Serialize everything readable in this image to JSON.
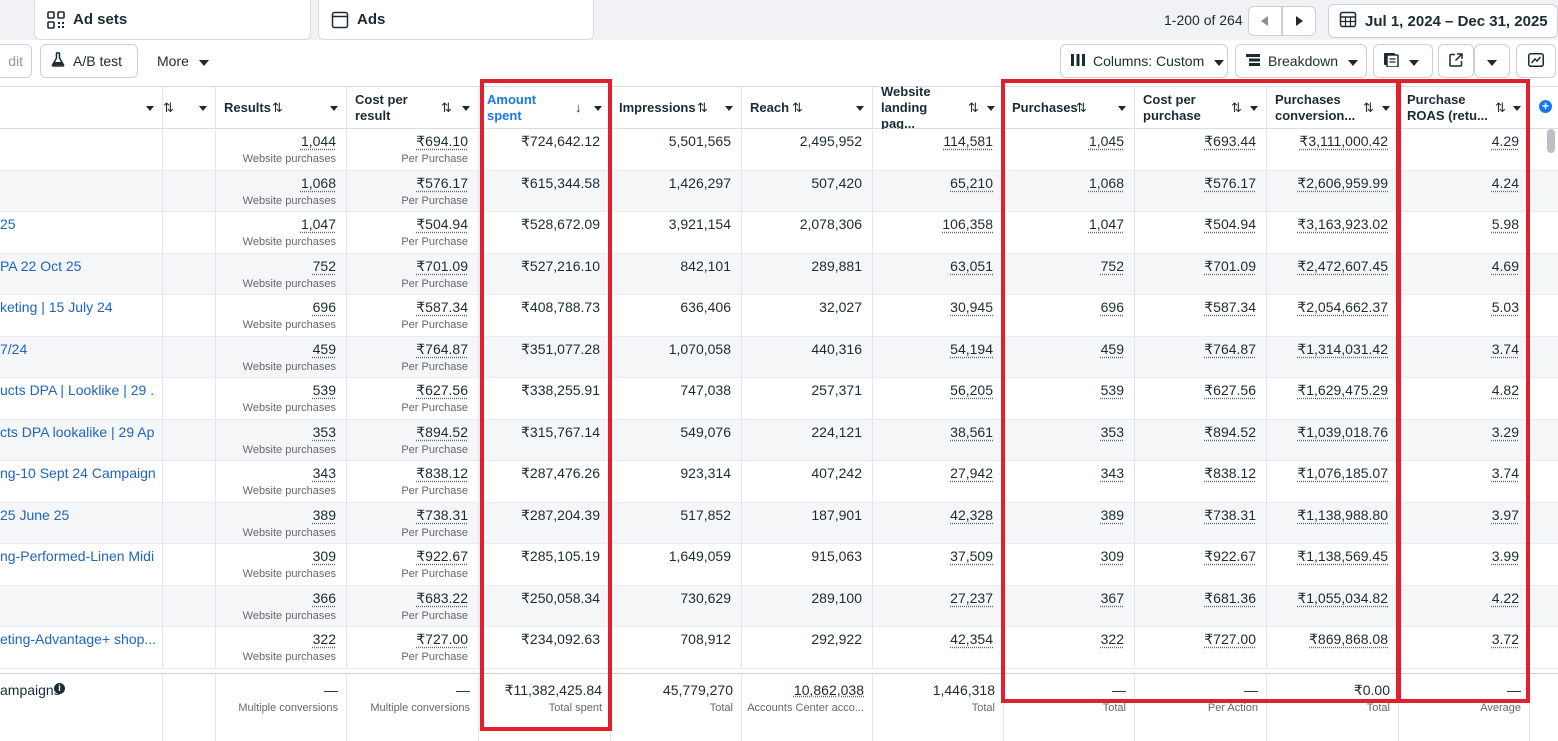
{
  "tabs": [
    {
      "label": "Ad sets",
      "icon": "ad-sets-icon"
    },
    {
      "label": "Ads",
      "icon": "ads-icon"
    }
  ],
  "pagination": {
    "text": "1-200 of 264"
  },
  "date_range": {
    "label": "Jul 1, 2024 – Dec 31, 2025",
    "icon": "calendar-icon"
  },
  "toolbar": {
    "edit_label": "dit",
    "ab_test_label": "A/B test",
    "more_label": "More",
    "columns_label": "Columns: Custom",
    "breakdown_label": "Breakdown"
  },
  "columns": [
    {
      "label": ""
    },
    {
      "label": ""
    },
    {
      "label": "Results"
    },
    {
      "label": "Cost per result"
    },
    {
      "label": "Amount spent"
    },
    {
      "label": "Impressions"
    },
    {
      "label": "Reach"
    },
    {
      "label": "Website landing pag..."
    },
    {
      "label": "Purchases"
    },
    {
      "label": "Cost per purchase"
    },
    {
      "label": "Purchases conversion..."
    },
    {
      "label": "Purchase ROAS (retu..."
    }
  ],
  "rows": [
    {
      "name": "",
      "results": "1,044",
      "results_sub": "Website purchases",
      "cpr": "₹694.10",
      "cpr_sub": "Per Purchase",
      "spent": "₹724,642.12",
      "impressions": "5,501,565",
      "reach": "2,495,952",
      "landing": "114,581",
      "purchases": "1,045",
      "cpp": "₹693.44",
      "conv": "₹3,111,000.42",
      "roas": "4.29"
    },
    {
      "name": "",
      "results": "1,068",
      "results_sub": "Website purchases",
      "cpr": "₹576.17",
      "cpr_sub": "Per Purchase",
      "spent": "₹615,344.58",
      "impressions": "1,426,297",
      "reach": "507,420",
      "landing": "65,210",
      "purchases": "1,068",
      "cpp": "₹576.17",
      "conv": "₹2,606,959.99",
      "roas": "4.24"
    },
    {
      "name": "25",
      "results": "1,047",
      "results_sub": "Website purchases",
      "cpr": "₹504.94",
      "cpr_sub": "Per Purchase",
      "spent": "₹528,672.09",
      "impressions": "3,921,154",
      "reach": "2,078,306",
      "landing": "106,358",
      "purchases": "1,047",
      "cpp": "₹504.94",
      "conv": "₹3,163,923.02",
      "roas": "5.98"
    },
    {
      "name": "PA 22 Oct 25",
      "results": "752",
      "results_sub": "Website purchases",
      "cpr": "₹701.09",
      "cpr_sub": "Per Purchase",
      "spent": "₹527,216.10",
      "impressions": "842,101",
      "reach": "289,881",
      "landing": "63,051",
      "purchases": "752",
      "cpp": "₹701.09",
      "conv": "₹2,472,607.45",
      "roas": "4.69"
    },
    {
      "name": "keting | 15 July 24",
      "results": "696",
      "results_sub": "Website purchases",
      "cpr": "₹587.34",
      "cpr_sub": "Per Purchase",
      "spent": "₹408,788.73",
      "impressions": "636,406",
      "reach": "32,027",
      "landing": "30,945",
      "purchases": "696",
      "cpp": "₹587.34",
      "conv": "₹2,054,662.37",
      "roas": "5.03"
    },
    {
      "name": "7/24",
      "results": "459",
      "results_sub": "Website purchases",
      "cpr": "₹764.87",
      "cpr_sub": "Per Purchase",
      "spent": "₹351,077.28",
      "impressions": "1,070,058",
      "reach": "440,316",
      "landing": "54,194",
      "purchases": "459",
      "cpp": "₹764.87",
      "conv": "₹1,314,031.42",
      "roas": "3.74"
    },
    {
      "name": "ucts DPA | Looklike | 29 ...",
      "results": "539",
      "results_sub": "Website purchases",
      "cpr": "₹627.56",
      "cpr_sub": "Per Purchase",
      "spent": "₹338,255.91",
      "impressions": "747,038",
      "reach": "257,371",
      "landing": "56,205",
      "purchases": "539",
      "cpp": "₹627.56",
      "conv": "₹1,629,475.29",
      "roas": "4.82"
    },
    {
      "name": "cts DPA lookalike | 29 Ap...",
      "results": "353",
      "results_sub": "Website purchases",
      "cpr": "₹894.52",
      "cpr_sub": "Per Purchase",
      "spent": "₹315,767.14",
      "impressions": "549,076",
      "reach": "224,121",
      "landing": "38,561",
      "purchases": "353",
      "cpp": "₹894.52",
      "conv": "₹1,039,018.76",
      "roas": "3.29"
    },
    {
      "name": "ng-10 Sept 24 Campaign",
      "results": "343",
      "results_sub": "Website purchases",
      "cpr": "₹838.12",
      "cpr_sub": "Per Purchase",
      "spent": "₹287,476.26",
      "impressions": "923,314",
      "reach": "407,242",
      "landing": "27,942",
      "purchases": "343",
      "cpp": "₹838.12",
      "conv": "₹1,076,185.07",
      "roas": "3.74"
    },
    {
      "name": " 25 June 25",
      "results": "389",
      "results_sub": "Website purchases",
      "cpr": "₹738.31",
      "cpr_sub": "Per Purchase",
      "spent": "₹287,204.39",
      "impressions": "517,852",
      "reach": "187,901",
      "landing": "42,328",
      "purchases": "389",
      "cpp": "₹738.31",
      "conv": "₹1,138,988.80",
      "roas": "3.97"
    },
    {
      "name": "ng-Performed-Linen Midi...",
      "results": "309",
      "results_sub": "Website purchases",
      "cpr": "₹922.67",
      "cpr_sub": "Per Purchase",
      "spent": "₹285,105.19",
      "impressions": "1,649,059",
      "reach": "915,063",
      "landing": "37,509",
      "purchases": "309",
      "cpp": "₹922.67",
      "conv": "₹1,138,569.45",
      "roas": "3.99"
    },
    {
      "name": "",
      "results": "366",
      "results_sub": "Website purchases",
      "cpr": "₹683.22",
      "cpr_sub": "Per Purchase",
      "spent": "₹250,058.34",
      "impressions": "730,629",
      "reach": "289,100",
      "landing": "27,237",
      "purchases": "367",
      "cpp": "₹681.36",
      "conv": "₹1,055,034.82",
      "roas": "4.22"
    },
    {
      "name": "eting-Advantage+ shop...",
      "results": "322",
      "results_sub": "Website purchases",
      "cpr": "₹727.00",
      "cpr_sub": "Per Purchase",
      "spent": "₹234,092.63",
      "impressions": "708,912",
      "reach": "292,922",
      "landing": "42,354",
      "purchases": "322",
      "cpp": "₹727.00",
      "conv": "₹869,868.08",
      "roas": "3.72"
    }
  ],
  "footer": {
    "name": "ampaigns",
    "results": "—",
    "results_sub": "Multiple conversions",
    "cpr": "—",
    "cpr_sub": "Multiple conversions",
    "spent": "₹11,382,425.84",
    "spent_sub": "Total spent",
    "impressions": "45,779,270",
    "impressions_sub": "Total",
    "reach": "10,862,038",
    "reach_sub": "Accounts Center acco...",
    "landing": "1,446,318",
    "landing_sub": "Total",
    "purchases": "—",
    "purchases_sub": "Total",
    "cpp": "—",
    "cpp_sub": "Per Action",
    "conv": "₹0.00",
    "conv_sub": "Total",
    "roas": "—",
    "roas_sub": "Average"
  },
  "highlight_color": "#e0202c",
  "link_color": "#1d65c1",
  "accent_color": "#1877f2"
}
